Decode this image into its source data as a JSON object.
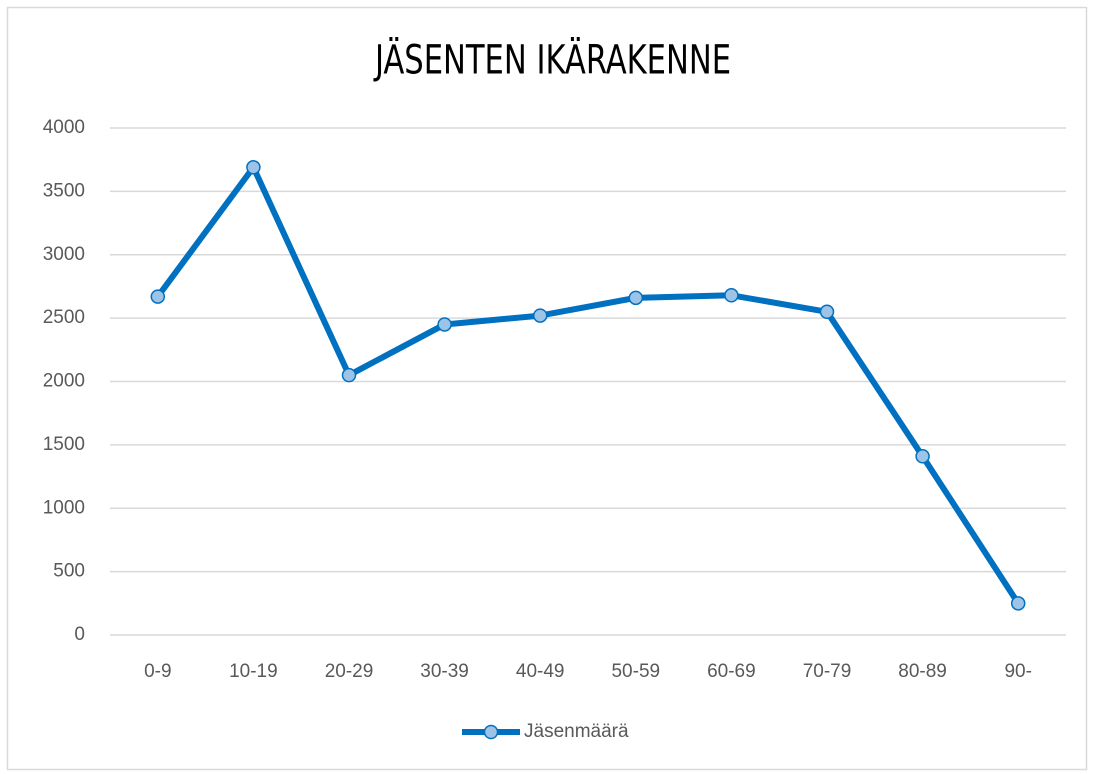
{
  "chart_data": {
    "type": "line",
    "title": "JÄSENTEN IKÄRAKENNE",
    "categories": [
      "0-9",
      "10-19",
      "20-29",
      "30-39",
      "40-49",
      "50-59",
      "60-69",
      "70-79",
      "80-89",
      "90-"
    ],
    "series": [
      {
        "name": "Jäsenmäärä",
        "color": "#0070c0",
        "marker_color": "#9dc3e6",
        "values": [
          2670,
          3690,
          2050,
          2450,
          2520,
          2660,
          2680,
          2550,
          1410,
          250
        ]
      }
    ],
    "ylim": [
      0,
      4000
    ],
    "yticks": [
      0,
      500,
      1000,
      1500,
      2000,
      2500,
      3000,
      3500,
      4000
    ],
    "grid": true,
    "legend": "bottom"
  }
}
